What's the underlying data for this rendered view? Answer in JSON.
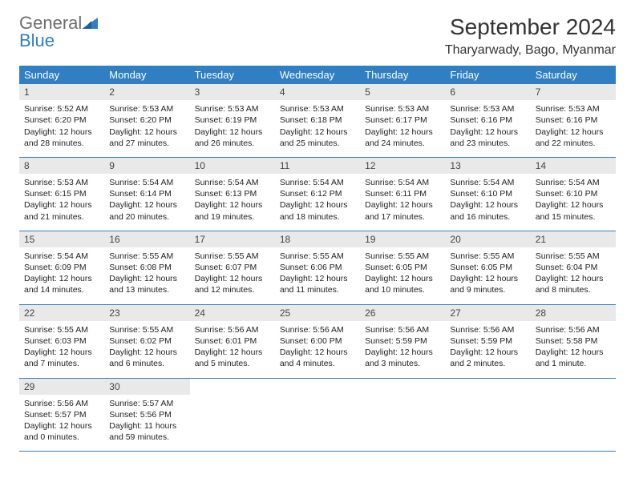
{
  "brand": {
    "part1": "General",
    "part2": "Blue",
    "color_gray": "#6d6d6d",
    "color_blue": "#2f7fc2"
  },
  "title": "September 2024",
  "location": "Tharyarwady, Bago, Myanmar",
  "weekdays": [
    "Sunday",
    "Monday",
    "Tuesday",
    "Wednesday",
    "Thursday",
    "Friday",
    "Saturday"
  ],
  "colors": {
    "header_bg": "#2f7fc2",
    "header_fg": "#ffffff",
    "daynum_bg": "#e9e9e9",
    "row_border": "#2f7fc2",
    "page_bg": "#ffffff",
    "text": "#222222"
  },
  "days": [
    {
      "n": "1",
      "sunrise": "5:52 AM",
      "sunset": "6:20 PM",
      "daylight": "12 hours and 28 minutes."
    },
    {
      "n": "2",
      "sunrise": "5:53 AM",
      "sunset": "6:20 PM",
      "daylight": "12 hours and 27 minutes."
    },
    {
      "n": "3",
      "sunrise": "5:53 AM",
      "sunset": "6:19 PM",
      "daylight": "12 hours and 26 minutes."
    },
    {
      "n": "4",
      "sunrise": "5:53 AM",
      "sunset": "6:18 PM",
      "daylight": "12 hours and 25 minutes."
    },
    {
      "n": "5",
      "sunrise": "5:53 AM",
      "sunset": "6:17 PM",
      "daylight": "12 hours and 24 minutes."
    },
    {
      "n": "6",
      "sunrise": "5:53 AM",
      "sunset": "6:16 PM",
      "daylight": "12 hours and 23 minutes."
    },
    {
      "n": "7",
      "sunrise": "5:53 AM",
      "sunset": "6:16 PM",
      "daylight": "12 hours and 22 minutes."
    },
    {
      "n": "8",
      "sunrise": "5:53 AM",
      "sunset": "6:15 PM",
      "daylight": "12 hours and 21 minutes."
    },
    {
      "n": "9",
      "sunrise": "5:54 AM",
      "sunset": "6:14 PM",
      "daylight": "12 hours and 20 minutes."
    },
    {
      "n": "10",
      "sunrise": "5:54 AM",
      "sunset": "6:13 PM",
      "daylight": "12 hours and 19 minutes."
    },
    {
      "n": "11",
      "sunrise": "5:54 AM",
      "sunset": "6:12 PM",
      "daylight": "12 hours and 18 minutes."
    },
    {
      "n": "12",
      "sunrise": "5:54 AM",
      "sunset": "6:11 PM",
      "daylight": "12 hours and 17 minutes."
    },
    {
      "n": "13",
      "sunrise": "5:54 AM",
      "sunset": "6:10 PM",
      "daylight": "12 hours and 16 minutes."
    },
    {
      "n": "14",
      "sunrise": "5:54 AM",
      "sunset": "6:10 PM",
      "daylight": "12 hours and 15 minutes."
    },
    {
      "n": "15",
      "sunrise": "5:54 AM",
      "sunset": "6:09 PM",
      "daylight": "12 hours and 14 minutes."
    },
    {
      "n": "16",
      "sunrise": "5:55 AM",
      "sunset": "6:08 PM",
      "daylight": "12 hours and 13 minutes."
    },
    {
      "n": "17",
      "sunrise": "5:55 AM",
      "sunset": "6:07 PM",
      "daylight": "12 hours and 12 minutes."
    },
    {
      "n": "18",
      "sunrise": "5:55 AM",
      "sunset": "6:06 PM",
      "daylight": "12 hours and 11 minutes."
    },
    {
      "n": "19",
      "sunrise": "5:55 AM",
      "sunset": "6:05 PM",
      "daylight": "12 hours and 10 minutes."
    },
    {
      "n": "20",
      "sunrise": "5:55 AM",
      "sunset": "6:05 PM",
      "daylight": "12 hours and 9 minutes."
    },
    {
      "n": "21",
      "sunrise": "5:55 AM",
      "sunset": "6:04 PM",
      "daylight": "12 hours and 8 minutes."
    },
    {
      "n": "22",
      "sunrise": "5:55 AM",
      "sunset": "6:03 PM",
      "daylight": "12 hours and 7 minutes."
    },
    {
      "n": "23",
      "sunrise": "5:55 AM",
      "sunset": "6:02 PM",
      "daylight": "12 hours and 6 minutes."
    },
    {
      "n": "24",
      "sunrise": "5:56 AM",
      "sunset": "6:01 PM",
      "daylight": "12 hours and 5 minutes."
    },
    {
      "n": "25",
      "sunrise": "5:56 AM",
      "sunset": "6:00 PM",
      "daylight": "12 hours and 4 minutes."
    },
    {
      "n": "26",
      "sunrise": "5:56 AM",
      "sunset": "5:59 PM",
      "daylight": "12 hours and 3 minutes."
    },
    {
      "n": "27",
      "sunrise": "5:56 AM",
      "sunset": "5:59 PM",
      "daylight": "12 hours and 2 minutes."
    },
    {
      "n": "28",
      "sunrise": "5:56 AM",
      "sunset": "5:58 PM",
      "daylight": "12 hours and 1 minute."
    },
    {
      "n": "29",
      "sunrise": "5:56 AM",
      "sunset": "5:57 PM",
      "daylight": "12 hours and 0 minutes."
    },
    {
      "n": "30",
      "sunrise": "5:57 AM",
      "sunset": "5:56 PM",
      "daylight": "11 hours and 59 minutes."
    }
  ],
  "labels": {
    "sunrise": "Sunrise:",
    "sunset": "Sunset:",
    "daylight": "Daylight:"
  },
  "layout": {
    "start_weekday_index": 0,
    "rows": 5,
    "cols": 7
  }
}
